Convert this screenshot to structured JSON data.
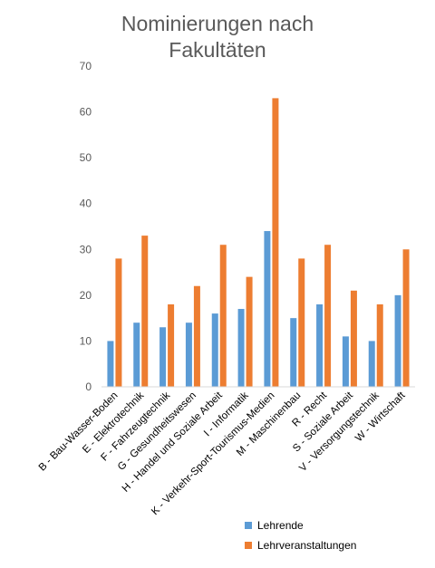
{
  "chart_data": {
    "type": "bar",
    "title_lines": [
      "Nominierungen nach",
      "Fakultäten"
    ],
    "categories": [
      "B - Bau-Wasser-Boden",
      "E - Elektrotechnik",
      "F - Fahrzeugtechnik",
      "G - Gesundheitswesen",
      "H - Handel und Soziale Arbeit",
      "I - Informatik",
      "K - Verkehr-Sport-Tourismus-Medien",
      "M - Maschinenbau",
      "R - Recht",
      "S - Soziale Arbeit",
      "V - Versorgungstechnik",
      "W - Wirtschaft"
    ],
    "series": [
      {
        "name": "Lehrende",
        "color": "#5B9BD5",
        "values": [
          10,
          14,
          13,
          14,
          16,
          17,
          34,
          15,
          18,
          11,
          10,
          20
        ]
      },
      {
        "name": "Lehrveranstaltungen",
        "color": "#ED7D31",
        "values": [
          28,
          33,
          18,
          22,
          31,
          24,
          63,
          28,
          31,
          21,
          18,
          30
        ]
      }
    ],
    "ylim": [
      0,
      70
    ],
    "yticks": [
      0,
      10,
      20,
      30,
      40,
      50,
      60,
      70
    ],
    "grid": false,
    "legend_position": "bottom-right"
  }
}
